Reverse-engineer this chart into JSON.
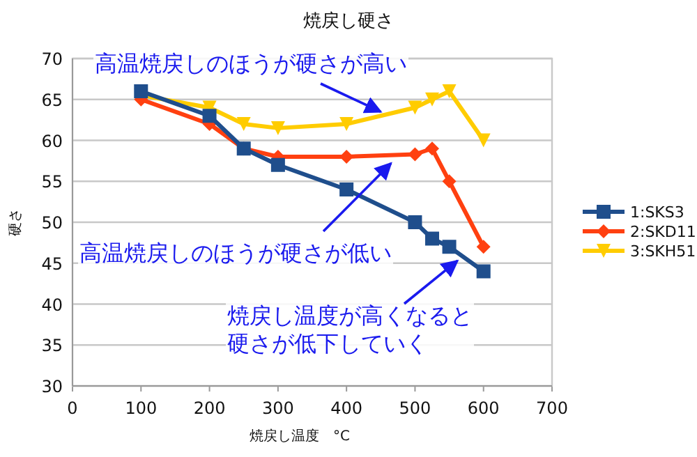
{
  "chart_data": {
    "type": "line",
    "title": "焼戻し硬さ",
    "xlabel": "焼戻し温度　°C",
    "ylabel": "硬さ",
    "xlim": [
      0,
      700
    ],
    "xticks": [
      0,
      100,
      200,
      300,
      400,
      500,
      600,
      700
    ],
    "ylim": [
      30,
      70
    ],
    "yticks": [
      30,
      35,
      40,
      45,
      50,
      55,
      60,
      65,
      70
    ],
    "grid": "y",
    "legend": "right",
    "line_style": "solid",
    "series": [
      {
        "name": "1:SKS3",
        "color": "#1f4e8c",
        "marker": "square",
        "x": [
          100,
          200,
          250,
          300,
          400,
          500,
          525,
          550,
          600
        ],
        "values": [
          66,
          63,
          59,
          57,
          54,
          50,
          48,
          47,
          44
        ]
      },
      {
        "name": "2:SKD11",
        "color": "#ff4010",
        "marker": "diamond",
        "x": [
          100,
          200,
          250,
          300,
          400,
          500,
          525,
          550,
          600
        ],
        "values": [
          65,
          62,
          59,
          58,
          58,
          58.3,
          59,
          55,
          47
        ]
      },
      {
        "name": "3:SKH51",
        "color": "#ffcc00",
        "marker": "triangle",
        "x": [
          100,
          200,
          250,
          300,
          400,
          500,
          525,
          550,
          600
        ],
        "values": [
          65.5,
          64,
          62,
          61.5,
          62,
          64,
          65,
          66,
          60
        ]
      }
    ],
    "annotations": [
      {
        "text": "高温焼戻しのほうが硬さが高い",
        "x": 450,
        "y": 63.5
      },
      {
        "text": "高温焼戻しのほうが硬さが低い",
        "x": 465,
        "y": 57.2
      },
      {
        "text": "焼戻し温度が高くなると硬さが低下していく",
        "x": 562,
        "y": 45.3
      }
    ]
  }
}
